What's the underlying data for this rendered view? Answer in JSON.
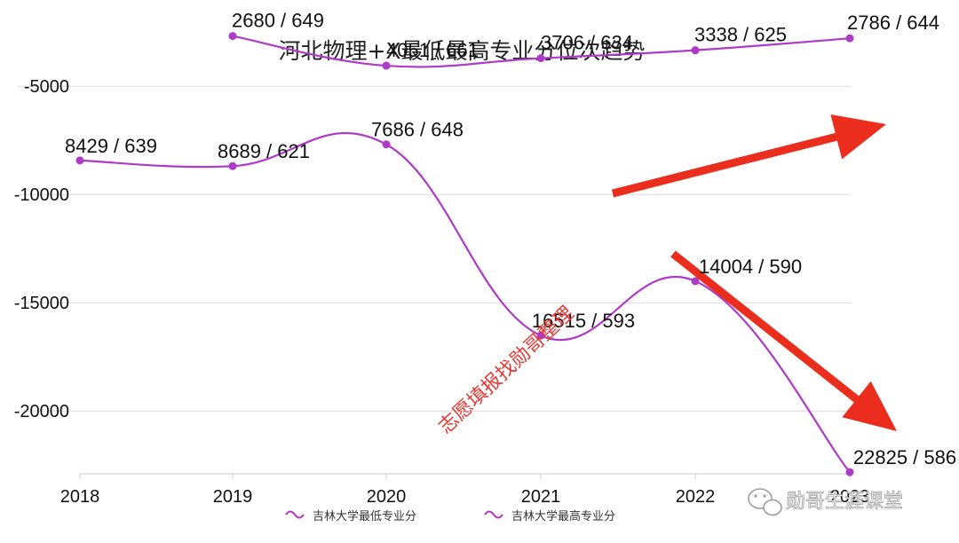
{
  "chart_data": {
    "type": "line",
    "title": "河北物理+X最低最高专业分位次趋势",
    "categories": [
      "2018",
      "2019",
      "2020",
      "2021",
      "2022",
      "2023"
    ],
    "y_ticks": [
      "-5000",
      "-10000",
      "-15000",
      "-20000"
    ],
    "ylim": [
      -22900,
      -2000
    ],
    "grid": true,
    "legend_position": "bottom",
    "series": [
      {
        "name": "吉林大学最低专业分",
        "values": [
          -8429,
          -8689,
          -7686,
          -16515,
          -14004,
          -22825
        ],
        "labels": [
          "8429 / 639",
          "8689 / 621",
          "7686 / 648",
          "16515 / 593",
          "14004 / 590",
          "22825 / 586"
        ]
      },
      {
        "name": "吉林大学最高专业分",
        "values": [
          null,
          -2680,
          -4051,
          -3706,
          -3338,
          -2786
        ],
        "labels": [
          null,
          "2680 / 649",
          "4051 / 661",
          "3706 / 634",
          "3338 / 625",
          "2786 / 644"
        ]
      }
    ]
  },
  "colors": {
    "series_low": "#b03ac8",
    "series_high": "#b03ac8",
    "arrow": "#ea2d1c",
    "grid": "#dcdcdc"
  },
  "watermark": "志愿填报找勋哥整理",
  "brand": {
    "icon": "wechat-icon",
    "text": "勋哥生涯课堂"
  }
}
